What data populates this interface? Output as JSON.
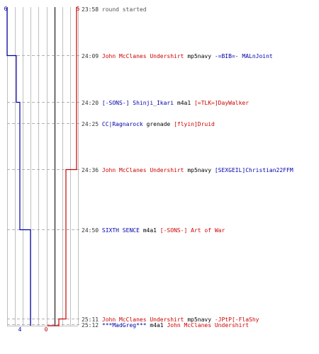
{
  "colors": {
    "blue_team": "#0000aa",
    "red_team": "#cc0000",
    "neutral_text": "#000000",
    "time_text": "#333333",
    "system_text": "#555555",
    "gridline": "#bfbfbf",
    "center_line": "#404040",
    "dashed_line": "#b0b0b0"
  },
  "chart_data": {
    "type": "line",
    "series": [
      {
        "team": "blue",
        "start_count": 6,
        "end_count": 4,
        "values": [
          6,
          5,
          4,
          4,
          4,
          3,
          3,
          3,
          3,
          3,
          3
        ]
      },
      {
        "team": "red",
        "start_count": 5,
        "end_count": 0,
        "values": [
          5,
          5,
          5,
          4,
          3,
          3,
          2,
          2,
          1,
          0,
          0
        ]
      }
    ],
    "grid_columns": 9,
    "grid_center_column": 4
  },
  "events": [
    {
      "time": "23:58",
      "parts": [
        {
          "text": "round started",
          "team": "system"
        }
      ]
    },
    {
      "time": "24:09",
      "parts": [
        {
          "text": "John McClanes Undershirt",
          "team": "red"
        },
        {
          "text": " mp5navy ",
          "team": "neutral"
        },
        {
          "text": "-=BIB=- MALnJoint",
          "team": "blue"
        }
      ]
    },
    {
      "time": "24:20",
      "parts": [
        {
          "text": "[-SONS-] Shinji_Ikari",
          "team": "blue"
        },
        {
          "text": " m4a1 ",
          "team": "neutral"
        },
        {
          "text": "[=TLK=]DayWalker",
          "team": "red"
        }
      ]
    },
    {
      "time": "24:25",
      "parts": [
        {
          "text": "CC|Ragnarock",
          "team": "blue"
        },
        {
          "text": " grenade ",
          "team": "neutral"
        },
        {
          "text": "[flyin]Druid",
          "team": "red"
        }
      ]
    },
    {
      "time": "24:36",
      "parts": [
        {
          "text": "John McClanes Undershirt",
          "team": "red"
        },
        {
          "text": " mp5navy ",
          "team": "neutral"
        },
        {
          "text": "[SEXGEIL]Christian22FFM",
          "team": "blue"
        }
      ]
    },
    {
      "time": "24:50",
      "parts": [
        {
          "text": "SIXTH   SENCE",
          "team": "blue"
        },
        {
          "text": " m4a1 ",
          "team": "neutral"
        },
        {
          "text": "[-SONS-] Art of War",
          "team": "red"
        }
      ]
    },
    {
      "time": "25:11",
      "parts": [
        {
          "text": "John McClanes Undershirt",
          "team": "red"
        },
        {
          "text": " mp5navy ",
          "team": "neutral"
        },
        {
          "text": "-JPtP[-FlaShy",
          "team": "red"
        }
      ]
    },
    {
      "time": "25:12",
      "parts": [
        {
          "text": "***MadGreg***",
          "team": "blue"
        },
        {
          "text": " m4a1 ",
          "team": "neutral"
        },
        {
          "text": "John McClanes Undershirt",
          "team": "red"
        }
      ]
    }
  ]
}
